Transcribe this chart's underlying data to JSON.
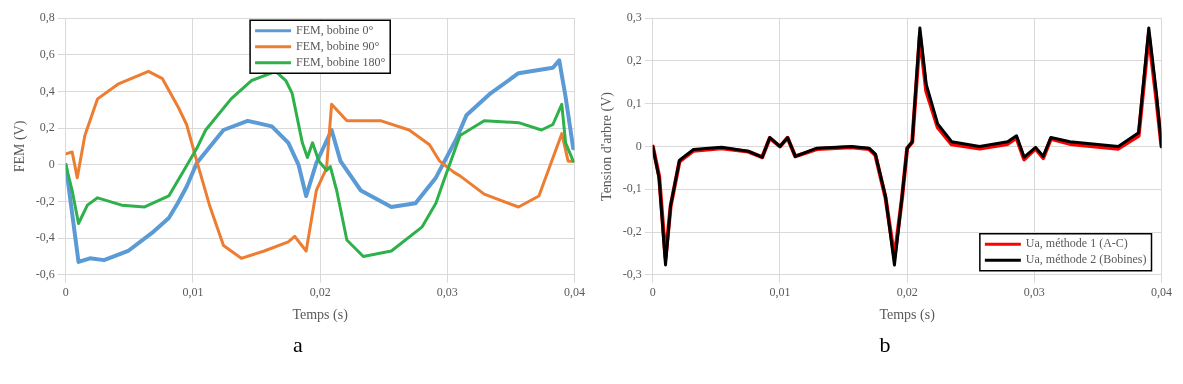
{
  "chart_data": [
    {
      "type": "line",
      "xlabel": "Temps (s)",
      "ylabel": "FEM (V)",
      "xlim": [
        0,
        0.04
      ],
      "ylim": [
        -0.6,
        0.8
      ],
      "xticks": [
        0,
        {
          "value": 0.01,
          "label": "0,01"
        },
        {
          "value": 0.02,
          "label": "0,02"
        },
        {
          "value": 0.03,
          "label": "0,03"
        },
        {
          "value": 0.04,
          "label": "0,04"
        }
      ],
      "yticks": [
        {
          "value": -0.6,
          "label": "-0,6"
        },
        {
          "value": -0.4,
          "label": "-0,4"
        },
        {
          "value": -0.2,
          "label": "-0,2"
        },
        0,
        {
          "value": 0.2,
          "label": "0,2"
        },
        {
          "value": 0.4,
          "label": "0,4"
        },
        {
          "value": 0.6,
          "label": "0,6"
        },
        {
          "value": 0.8,
          "label": "0,8"
        }
      ],
      "grid": true,
      "legend": "top",
      "annotations": [
        "a"
      ],
      "series": [
        {
          "name": "FEM, bobine 0°",
          "color": "#5b9bd5",
          "x": [
            0,
            0.001,
            0.0019,
            0.003,
            0.0049,
            0.0068,
            0.0081,
            0.0088,
            0.0095,
            0.0103,
            0.011,
            0.0124,
            0.0143,
            0.0162,
            0.0175,
            0.0183,
            0.0189,
            0.0197,
            0.0209,
            0.0216,
            0.0232,
            0.0256,
            0.0275,
            0.0291,
            0.0307,
            0.0315,
            0.0334,
            0.0356,
            0.0383,
            0.0388,
            0.0393,
            0.0399
          ],
          "values": [
            0,
            -0.53,
            -0.51,
            -0.52,
            -0.47,
            -0.37,
            -0.29,
            -0.21,
            -0.12,
            0.01,
            0.07,
            0.19,
            0.24,
            0.21,
            0.12,
            0,
            -0.17,
            0.01,
            0.19,
            0.02,
            -0.14,
            -0.23,
            -0.21,
            -0.07,
            0.14,
            0.27,
            0.39,
            0.5,
            0.53,
            0.57,
            0.37,
            0.09
          ]
        },
        {
          "name": "FEM, bobine 90°",
          "color": "#ed7d31",
          "x": [
            0,
            0.0005,
            0.0009,
            0.0015,
            0.0025,
            0.0041,
            0.0065,
            0.0076,
            0.0088,
            0.0095,
            0.0103,
            0.0113,
            0.0124,
            0.0138,
            0.0156,
            0.0175,
            0.018,
            0.0189,
            0.0197,
            0.0205,
            0.0209,
            0.0221,
            0.0248,
            0.027,
            0.0286,
            0.0294,
            0.0305,
            0.031,
            0.0329,
            0.0356,
            0.0372,
            0.039,
            0.0395,
            0.0399
          ],
          "values": [
            0.06,
            0.07,
            -0.07,
            0.16,
            0.36,
            0.44,
            0.51,
            0.47,
            0.32,
            0.22,
            0.02,
            -0.22,
            -0.44,
            -0.51,
            -0.47,
            -0.42,
            -0.39,
            -0.47,
            -0.14,
            -0.02,
            0.33,
            0.24,
            0.24,
            0.19,
            0.11,
            0.02,
            -0.04,
            -0.06,
            -0.16,
            -0.23,
            -0.17,
            0.17,
            0.02,
            0.02
          ]
        },
        {
          "name": "FEM, bobine 180°",
          "color": "#2eb04a",
          "x": [
            0,
            0.0005,
            0.001,
            0.0017,
            0.0025,
            0.0044,
            0.0062,
            0.0081,
            0.0092,
            0.0103,
            0.011,
            0.013,
            0.0146,
            0.0165,
            0.0173,
            0.0178,
            0.0186,
            0.019,
            0.0194,
            0.0199,
            0.0205,
            0.0208,
            0.0213,
            0.0221,
            0.0234,
            0.0256,
            0.028,
            0.0291,
            0.0296,
            0.031,
            0.0329,
            0.0356,
            0.0374,
            0.0383,
            0.039,
            0.0393,
            0.0399
          ],
          "values": [
            0,
            -0.14,
            -0.32,
            -0.22,
            -0.18,
            -0.22,
            -0.23,
            -0.17,
            -0.04,
            0.09,
            0.19,
            0.36,
            0.46,
            0.51,
            0.46,
            0.39,
            0.12,
            0.04,
            0.12,
            0.02,
            -0.03,
            -0.01,
            -0.14,
            -0.41,
            -0.5,
            -0.47,
            -0.34,
            -0.21,
            -0.11,
            0.16,
            0.24,
            0.23,
            0.19,
            0.22,
            0.33,
            0.12,
            0.02
          ]
        }
      ]
    },
    {
      "type": "line",
      "xlabel": "Temps (s)",
      "ylabel": "Tension d'arbre (V)",
      "xlim": [
        0,
        0.04
      ],
      "ylim": [
        -0.3,
        0.3
      ],
      "xticks": [
        0,
        {
          "value": 0.01,
          "label": "0,01"
        },
        {
          "value": 0.02,
          "label": "0,02"
        },
        {
          "value": 0.03,
          "label": "0,03"
        },
        {
          "value": 0.04,
          "label": "0,04"
        }
      ],
      "yticks": [
        {
          "value": -0.3,
          "label": "-0,3"
        },
        {
          "value": -0.2,
          "label": "-0,2"
        },
        {
          "value": -0.1,
          "label": "-0,1"
        },
        0,
        {
          "value": 0.1,
          "label": "0,1"
        },
        {
          "value": 0.2,
          "label": "0,2"
        },
        {
          "value": 0.3,
          "label": "0,3"
        }
      ],
      "grid": true,
      "legend": "bottom right",
      "annotations": [
        "b"
      ],
      "series": [
        {
          "name": "Ua, méthode 1 (A-C)",
          "color": "#ff0000",
          "x": [
            0,
            0.0005,
            0.001,
            0.0014,
            0.0021,
            0.0032,
            0.0054,
            0.0075,
            0.0086,
            0.0092,
            0.01,
            0.0106,
            0.0112,
            0.0129,
            0.0156,
            0.017,
            0.0175,
            0.0183,
            0.019,
            0.0196,
            0.02,
            0.0204,
            0.021,
            0.0215,
            0.0224,
            0.0235,
            0.0257,
            0.0279,
            0.0286,
            0.0292,
            0.0301,
            0.0307,
            0.0313,
            0.0328,
            0.0366,
            0.0382,
            0.039,
            0.0396,
            0.04
          ],
          "values": [
            0,
            -0.07,
            -0.26,
            -0.14,
            -0.035,
            -0.01,
            -0.004,
            -0.012,
            -0.025,
            0.02,
            0,
            0.02,
            -0.023,
            -0.006,
            -0.002,
            -0.006,
            -0.02,
            -0.12,
            -0.26,
            -0.12,
            -0.004,
            0.01,
            0.26,
            0.13,
            0.045,
            0.005,
            -0.005,
            0.006,
            0.02,
            -0.03,
            -0.005,
            -0.027,
            0.018,
            0.006,
            -0.005,
            0.025,
            0.26,
            0.11,
            0
          ]
        },
        {
          "name": "Ua, méthode 2 (Bobines)",
          "color": "#000000",
          "x": [
            0,
            0.0005,
            0.001,
            0.0014,
            0.0021,
            0.0032,
            0.0054,
            0.0075,
            0.0086,
            0.0092,
            0.01,
            0.0106,
            0.0112,
            0.0129,
            0.0156,
            0.017,
            0.0175,
            0.0183,
            0.019,
            0.0196,
            0.02,
            0.0204,
            0.021,
            0.0215,
            0.0224,
            0.0235,
            0.0257,
            0.0279,
            0.0286,
            0.0292,
            0.0301,
            0.0307,
            0.0313,
            0.0328,
            0.0366,
            0.0382,
            0.039,
            0.0396,
            0.04
          ],
          "values": [
            0,
            -0.075,
            -0.277,
            -0.138,
            -0.032,
            -0.007,
            -0.002,
            -0.011,
            -0.025,
            0.021,
            0,
            0.021,
            -0.023,
            -0.004,
            0,
            -0.004,
            -0.018,
            -0.117,
            -0.277,
            -0.117,
            -0.004,
            0.011,
            0.277,
            0.145,
            0.053,
            0.011,
            0,
            0.011,
            0.025,
            -0.025,
            -0.002,
            -0.023,
            0.021,
            0.011,
            0,
            0.032,
            0.277,
            0.124,
            0
          ]
        }
      ]
    }
  ]
}
